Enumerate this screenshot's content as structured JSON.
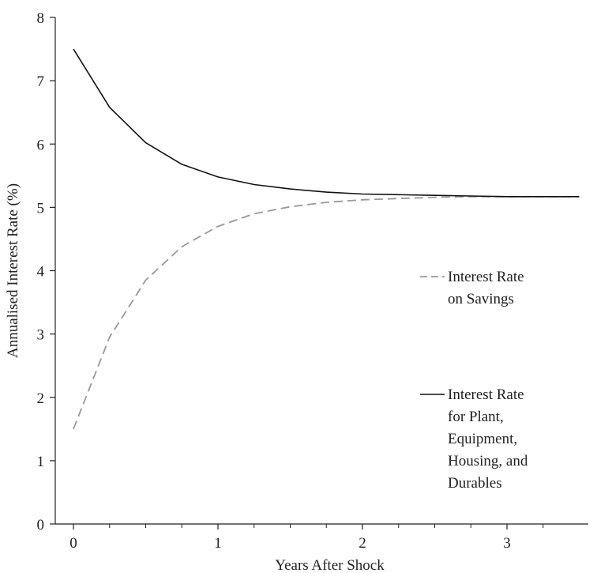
{
  "chart_data": {
    "type": "line",
    "title": "",
    "xlabel": "Years After Shock",
    "ylabel": "Annualised Interest Rate (%)",
    "xlim": [
      -0.12,
      3.5
    ],
    "ylim": [
      0,
      8
    ],
    "x_ticks": [
      {
        "value": 0,
        "label": "0"
      },
      {
        "value": 1,
        "label": "1"
      },
      {
        "value": 2,
        "label": "2"
      },
      {
        "value": 3,
        "label": "3"
      }
    ],
    "x_minor_ticks": [
      0.25,
      0.5,
      0.75,
      1.25,
      1.5,
      1.75,
      2.25,
      2.5,
      2.75,
      3.25
    ],
    "y_ticks": [
      {
        "value": 0,
        "label": "0"
      },
      {
        "value": 1,
        "label": "1"
      },
      {
        "value": 2,
        "label": "2"
      },
      {
        "value": 3,
        "label": "3"
      },
      {
        "value": 4,
        "label": "4"
      },
      {
        "value": 5,
        "label": "5"
      },
      {
        "value": 6,
        "label": "6"
      },
      {
        "value": 7,
        "label": "7"
      },
      {
        "value": 8,
        "label": "8"
      }
    ],
    "grid": false,
    "legend_position": "right",
    "series": [
      {
        "key": "savings",
        "legend_lines": [
          "Interest Rate",
          "on Savings"
        ],
        "color": "#999999",
        "style": "dashed",
        "x": [
          0,
          0.25,
          0.5,
          0.75,
          1,
          1.25,
          1.5,
          1.75,
          2,
          2.25,
          2.5,
          2.75,
          3,
          3.25,
          3.5
        ],
        "y": [
          1.5,
          2.95,
          3.85,
          4.38,
          4.7,
          4.9,
          5.01,
          5.08,
          5.12,
          5.14,
          5.16,
          5.17,
          5.17,
          5.17,
          5.17
        ]
      },
      {
        "key": "plant",
        "legend_lines": [
          "Interest Rate",
          "for Plant,",
          "Equipment,",
          "Housing, and",
          "Durables"
        ],
        "color": "#111111",
        "style": "solid",
        "x": [
          0,
          0.25,
          0.5,
          0.75,
          1,
          1.25,
          1.5,
          1.75,
          2,
          2.25,
          2.5,
          2.75,
          3,
          3.25,
          3.5
        ],
        "y": [
          7.5,
          6.58,
          6.02,
          5.68,
          5.48,
          5.36,
          5.29,
          5.24,
          5.21,
          5.2,
          5.19,
          5.18,
          5.17,
          5.17,
          5.17
        ]
      }
    ]
  }
}
